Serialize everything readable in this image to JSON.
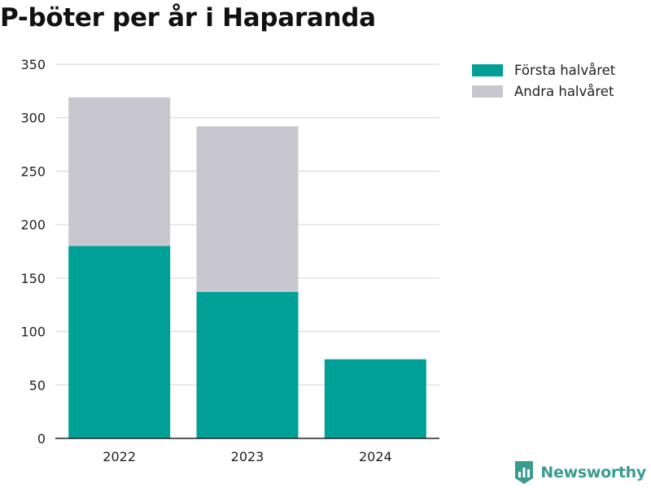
{
  "chart_data": {
    "type": "bar",
    "stacked": true,
    "title": "P-böter per år i Haparanda",
    "categories": [
      "2022",
      "2023",
      "2024"
    ],
    "series": [
      {
        "name": "Första halvåret",
        "color": "#00a096",
        "values": [
          180,
          137,
          74
        ]
      },
      {
        "name": "Andra halvåret",
        "color": "#c8c7cf",
        "values": [
          139,
          155,
          null
        ]
      }
    ],
    "ylim": [
      0,
      350
    ],
    "yticks": [
      0,
      50,
      100,
      150,
      200,
      250,
      300,
      350
    ],
    "xlabel": "",
    "ylabel": "",
    "grid": true,
    "legend_position": "top-right"
  },
  "brand": {
    "name": "Newsworthy",
    "color": "#3a9c8f",
    "icon": "newsworthy-chart-logo-icon"
  }
}
